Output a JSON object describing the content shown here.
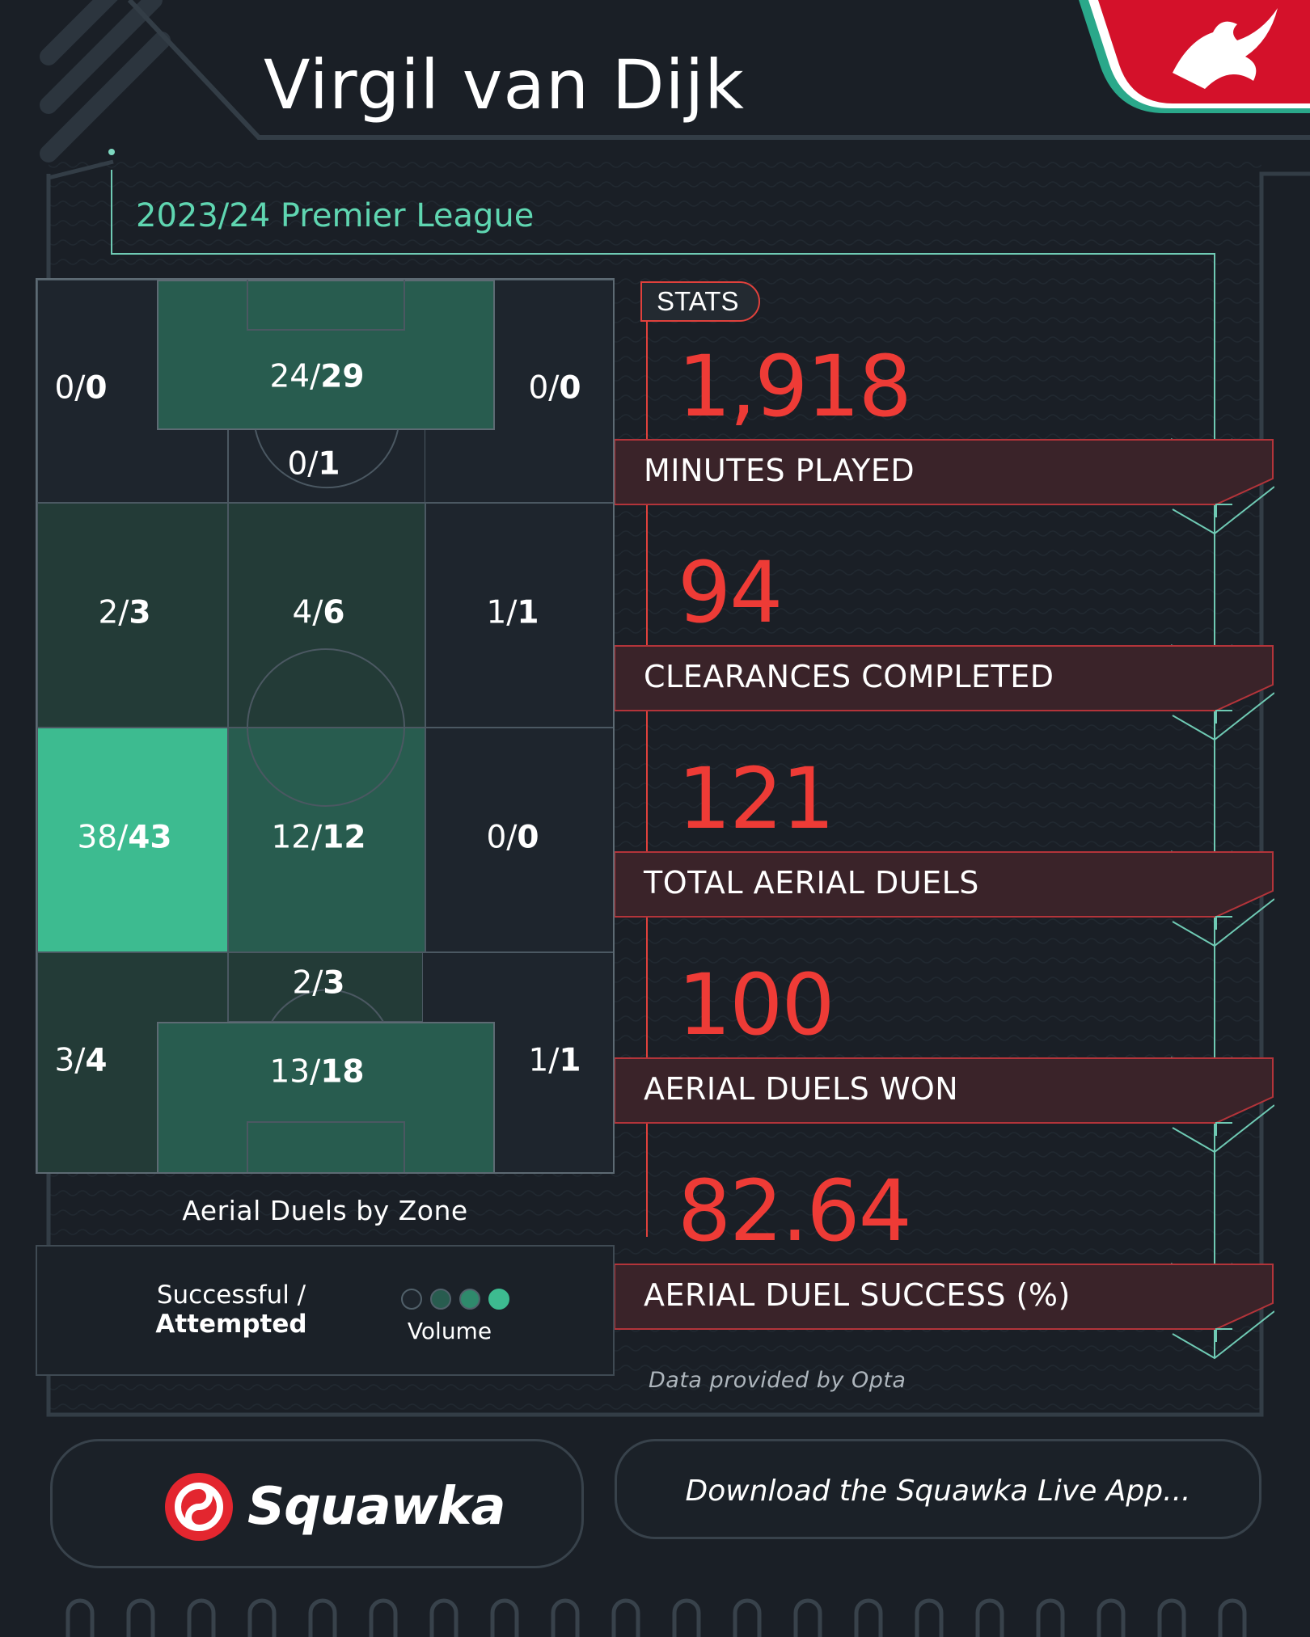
{
  "header": {
    "player_name": "Virgil van Dijk",
    "competition": "2023/24 Premier League"
  },
  "chart_data": {
    "type": "heatmap",
    "title": "Aerial Duels by Zone",
    "zones": [
      {
        "id": "top-left",
        "successful": 0,
        "attempted": 0
      },
      {
        "id": "top-box",
        "successful": 24,
        "attempted": 29
      },
      {
        "id": "top-right",
        "successful": 0,
        "attempted": 0
      },
      {
        "id": "top-arc",
        "successful": 0,
        "attempted": 1
      },
      {
        "id": "mid-upper-left",
        "successful": 2,
        "attempted": 3
      },
      {
        "id": "mid-upper-center",
        "successful": 4,
        "attempted": 6
      },
      {
        "id": "mid-upper-right",
        "successful": 1,
        "attempted": 1
      },
      {
        "id": "mid-lower-left",
        "successful": 38,
        "attempted": 43
      },
      {
        "id": "mid-lower-center",
        "successful": 12,
        "attempted": 12
      },
      {
        "id": "mid-lower-right",
        "successful": 0,
        "attempted": 0
      },
      {
        "id": "bottom-arc",
        "successful": 2,
        "attempted": 3
      },
      {
        "id": "bottom-left",
        "successful": 3,
        "attempted": 4
      },
      {
        "id": "bottom-box",
        "successful": 13,
        "attempted": 18
      },
      {
        "id": "bottom-right",
        "successful": 1,
        "attempted": 1
      }
    ],
    "color_scale": [
      "#1e252d",
      "#233b37",
      "#285c4f",
      "#3dbb90"
    ]
  },
  "legend": {
    "line1": "Successful /",
    "line2": "Attempted",
    "volume_label": "Volume",
    "dot_colors": [
      "#1e252d",
      "#285c4f",
      "#2f8a6c",
      "#3dbb90"
    ]
  },
  "stats": {
    "tag": "STATS",
    "items": [
      {
        "value": "1,918",
        "label": "MINUTES PLAYED"
      },
      {
        "value": "94",
        "label": "CLEARANCES COMPLETED"
      },
      {
        "value": "121",
        "label": "TOTAL AERIAL DUELS"
      },
      {
        "value": "100",
        "label": "AERIAL DUELS WON"
      },
      {
        "value": "82.64",
        "label": "AERIAL DUEL SUCCESS (%)"
      }
    ]
  },
  "attribution": "Data provided by Opta",
  "footer": {
    "brand": "Squawka",
    "cta": "Download the Squawka Live App..."
  },
  "colors": {
    "accent_red": "#ee3b36",
    "accent_teal": "#5fd6b1",
    "bar_bg": "#3a2329",
    "bg": "#1a1f26"
  }
}
